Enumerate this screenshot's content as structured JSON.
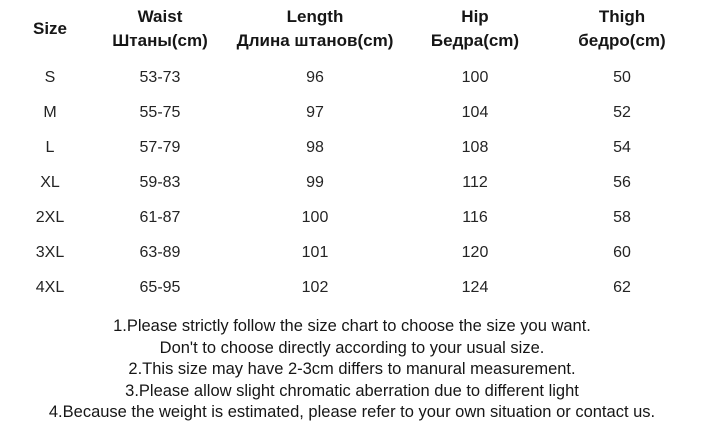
{
  "page": {
    "background_color": "#ffffff",
    "text_color": "#1f1f1f"
  },
  "chart_data": {
    "type": "table",
    "columns": [
      {
        "key": "size",
        "en": "Size",
        "local": ""
      },
      {
        "key": "waist",
        "en": "Waist",
        "local": "Штаны(cm)"
      },
      {
        "key": "length",
        "en": "Length",
        "local": "Длина штанов(cm)"
      },
      {
        "key": "hip",
        "en": "Hip",
        "local": "Бедра(cm)"
      },
      {
        "key": "thigh",
        "en": "Thigh",
        "local": "бедро(cm)"
      }
    ],
    "rows": [
      {
        "size": "S",
        "waist": "53-73",
        "length": "96",
        "hip": "100",
        "thigh": "50"
      },
      {
        "size": "M",
        "waist": "55-75",
        "length": "97",
        "hip": "104",
        "thigh": "52"
      },
      {
        "size": "L",
        "waist": "57-79",
        "length": "98",
        "hip": "108",
        "thigh": "54"
      },
      {
        "size": "XL",
        "waist": "59-83",
        "length": "99",
        "hip": "112",
        "thigh": "56"
      },
      {
        "size": "2XL",
        "waist": "61-87",
        "length": "100",
        "hip": "116",
        "thigh": "58"
      },
      {
        "size": "3XL",
        "waist": "63-89",
        "length": "101",
        "hip": "120",
        "thigh": "60"
      },
      {
        "size": "4XL",
        "waist": "65-95",
        "length": "102",
        "hip": "124",
        "thigh": "62"
      }
    ]
  },
  "notes": {
    "lines": [
      "1.Please strictly follow the size chart to choose the size you want.",
      "Don't to choose directly according to your usual size.",
      "2.This size may have 2-3cm differs to manural measurement.",
      "3.Please allow slight chromatic aberration due to different light",
      "4.Because the weight is estimated, please refer to your own situation or contact us."
    ]
  }
}
